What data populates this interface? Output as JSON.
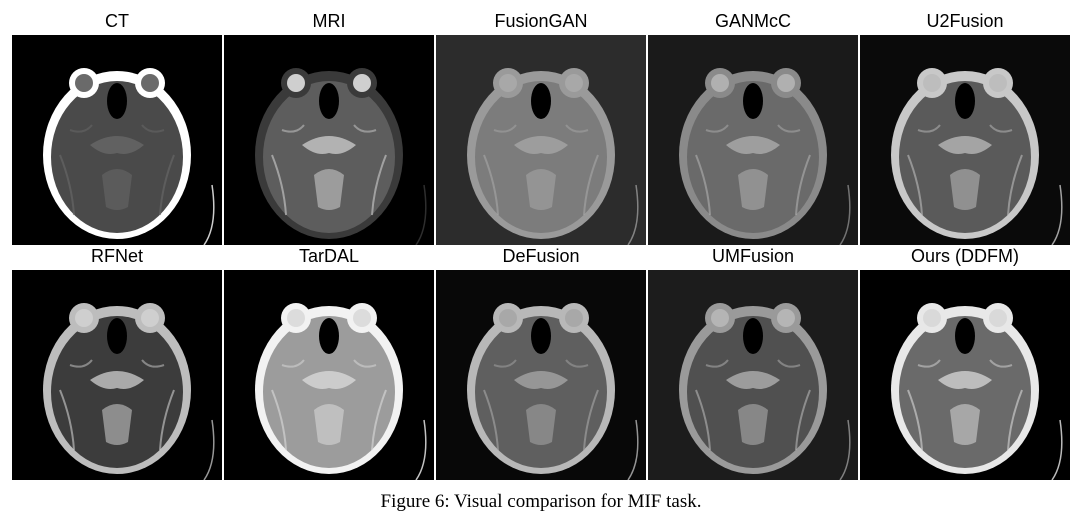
{
  "row1": {
    "labels": [
      "CT",
      "MRI",
      "FusionGAN",
      "GANMcC",
      "U2Fusion"
    ]
  },
  "row2": {
    "labels": [
      "RFNet",
      "TarDAL",
      "DeFusion",
      "UMFusion",
      "Ours (DDFM)"
    ]
  },
  "caption": "Figure 6: Visual comparison for MIF task.",
  "panels": [
    {
      "method": "CT",
      "bg": "#000000",
      "skull": "#ffffff",
      "brain": "#4a4a4a",
      "detail": "#6a6a6a"
    },
    {
      "method": "MRI",
      "bg": "#000000",
      "skull": "#3a3a3a",
      "brain": "#5d5d5d",
      "detail": "#cfcfcf"
    },
    {
      "method": "FusionGAN",
      "bg": "#2c2c2c",
      "skull": "#9a9a9a",
      "brain": "#7c7c7c",
      "detail": "#a8a8a8"
    },
    {
      "method": "GANMcC",
      "bg": "#1a1a1a",
      "skull": "#8a8a8a",
      "brain": "#6a6a6a",
      "detail": "#b0b0b0"
    },
    {
      "method": "U2Fusion",
      "bg": "#0a0a0a",
      "skull": "#c8c8c8",
      "brain": "#5a5a5a",
      "detail": "#bdbdbd"
    },
    {
      "method": "RFNet",
      "bg": "#000000",
      "skull": "#bdbdbd",
      "brain": "#3c3c3c",
      "detail": "#cfcfcf"
    },
    {
      "method": "TarDAL",
      "bg": "#000000",
      "skull": "#f2f2f2",
      "brain": "#9c9c9c",
      "detail": "#dcdcdc"
    },
    {
      "method": "DeFusion",
      "bg": "#080808",
      "skull": "#b8b8b8",
      "brain": "#5f5f5f",
      "detail": "#a8a8a8"
    },
    {
      "method": "UMFusion",
      "bg": "#1c1c1c",
      "skull": "#9a9a9a",
      "brain": "#505050",
      "detail": "#b5b5b5"
    },
    {
      "method": "Ours (DDFM)",
      "bg": "#000000",
      "skull": "#e8e8e8",
      "brain": "#6a6a6a",
      "detail": "#d9d9d9"
    }
  ]
}
